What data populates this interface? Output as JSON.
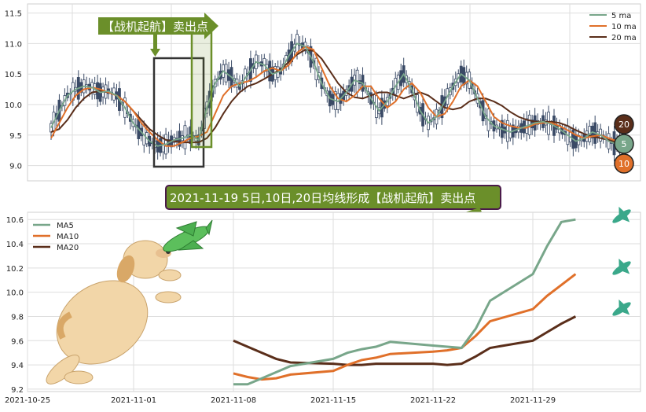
{
  "banner_top": "【战机起航】卖出点",
  "banner_mid": "2021-11-19 5日,10日,20日均线形成【战机起航】卖出点",
  "colors": {
    "ma5": "#78a68a",
    "ma10": "#e0702a",
    "ma20": "#5a2e1a",
    "candle": "#3a4a66",
    "banner_green": "#6b8f2a",
    "box": "#333333"
  },
  "badges": [
    "20",
    "5",
    "10"
  ],
  "chart_data": [
    {
      "type": "line",
      "subtype": "candlestick_with_ma",
      "ylim": [
        8.75,
        11.65
      ],
      "yticks": [
        9.0,
        9.5,
        10.0,
        10.5,
        11.0,
        11.5
      ],
      "legend": [
        "5 ma",
        "10 ma",
        "20 ma"
      ],
      "legend_position": "top-right",
      "grid": true,
      "ma5": [
        9.62,
        9.9,
        10.15,
        10.25,
        10.3,
        10.28,
        10.2,
        10.22,
        10.15,
        9.95,
        9.7,
        9.55,
        9.4,
        9.32,
        9.35,
        9.42,
        9.45,
        9.5,
        9.42,
        9.95,
        10.35,
        10.55,
        10.45,
        10.3,
        10.5,
        10.7,
        10.65,
        10.5,
        10.55,
        10.8,
        11.0,
        10.95,
        10.7,
        10.35,
        10.1,
        10.05,
        10.2,
        10.4,
        10.35,
        10.1,
        9.9,
        10.05,
        10.3,
        10.5,
        10.25,
        9.9,
        9.7,
        9.8,
        10.05,
        10.3,
        10.5,
        10.4,
        10.1,
        9.8,
        9.65,
        9.6,
        9.55,
        9.6,
        9.65,
        9.7,
        9.72,
        9.68,
        9.6,
        9.5,
        9.4,
        9.45,
        9.55,
        9.5,
        9.4,
        9.35
      ],
      "ma10": [
        9.45,
        9.7,
        9.95,
        10.15,
        10.25,
        10.28,
        10.25,
        10.2,
        10.15,
        10.05,
        9.9,
        9.7,
        9.55,
        9.42,
        9.32,
        9.32,
        9.38,
        9.45,
        9.48,
        9.55,
        9.85,
        10.15,
        10.3,
        10.35,
        10.38,
        10.45,
        10.55,
        10.6,
        10.55,
        10.65,
        10.85,
        10.95,
        10.9,
        10.6,
        10.3,
        10.1,
        10.05,
        10.15,
        10.3,
        10.3,
        10.1,
        9.95,
        10.05,
        10.25,
        10.35,
        10.2,
        9.95,
        9.8,
        9.85,
        10.05,
        10.3,
        10.4,
        10.3,
        10.05,
        9.8,
        9.7,
        9.65,
        9.62,
        9.62,
        9.68,
        9.7,
        9.7,
        9.65,
        9.58,
        9.5,
        9.45,
        9.48,
        9.5,
        9.45,
        9.4
      ],
      "ma20": [
        9.55,
        9.6,
        9.75,
        9.95,
        10.1,
        10.2,
        10.22,
        10.2,
        10.15,
        10.05,
        9.9,
        9.75,
        9.6,
        9.5,
        9.42,
        9.4,
        9.38,
        9.38,
        9.38,
        9.45,
        9.62,
        9.85,
        10.05,
        10.2,
        10.3,
        10.35,
        10.42,
        10.5,
        10.58,
        10.7,
        10.82,
        10.9,
        10.88,
        10.75,
        10.55,
        10.35,
        10.2,
        10.12,
        10.1,
        10.15,
        10.2,
        10.2,
        10.15,
        10.1,
        10.15,
        10.2,
        10.15,
        10.05,
        9.95,
        9.92,
        9.95,
        10.05,
        10.1,
        10.1,
        10.05,
        9.98,
        9.88,
        9.8,
        9.75,
        9.72,
        9.72,
        9.72,
        9.7,
        9.65,
        9.58,
        9.52,
        9.48,
        9.45,
        9.42,
        9.38
      ]
    },
    {
      "type": "line",
      "ylim": [
        9.18,
        10.66
      ],
      "yticks": [
        9.2,
        9.4,
        9.6,
        9.8,
        10.0,
        10.2,
        10.4,
        10.6
      ],
      "x_tick_labels": [
        "2021-10-25",
        "2021-11-01",
        "2021-11-08",
        "2021-11-15",
        "2021-11-22",
        "2021-11-29"
      ],
      "legend": [
        "MA5",
        "MA10",
        "MA20"
      ],
      "legend_position": "top-left",
      "grid": true,
      "x": [
        "2021-11-08",
        "2021-11-09",
        "2021-11-10",
        "2021-11-11",
        "2021-11-12",
        "2021-11-15",
        "2021-11-16",
        "2021-11-17",
        "2021-11-18",
        "2021-11-19",
        "2021-11-22",
        "2021-11-23",
        "2021-11-24",
        "2021-11-25",
        "2021-11-26",
        "2021-11-29",
        "2021-11-30",
        "2021-12-01",
        "2021-12-02",
        "2021-12-03"
      ],
      "series": [
        {
          "name": "MA5",
          "values": [
            9.24,
            9.24,
            9.29,
            9.34,
            9.39,
            9.45,
            9.5,
            9.53,
            9.55,
            9.59,
            9.56,
            9.55,
            9.54,
            9.7,
            9.93,
            10.15,
            10.38,
            10.58,
            10.6,
            null
          ]
        },
        {
          "name": "MA10",
          "values": [
            9.33,
            9.3,
            9.28,
            9.29,
            9.32,
            9.35,
            9.4,
            9.44,
            9.46,
            9.49,
            9.51,
            9.52,
            9.54,
            9.64,
            9.76,
            9.86,
            9.97,
            10.06,
            10.15,
            null
          ]
        },
        {
          "name": "MA20",
          "values": [
            9.6,
            9.55,
            9.5,
            9.45,
            9.42,
            9.41,
            9.4,
            9.4,
            9.41,
            9.41,
            9.41,
            9.4,
            9.41,
            9.47,
            9.54,
            9.6,
            9.67,
            9.74,
            9.8,
            null
          ]
        }
      ]
    }
  ]
}
